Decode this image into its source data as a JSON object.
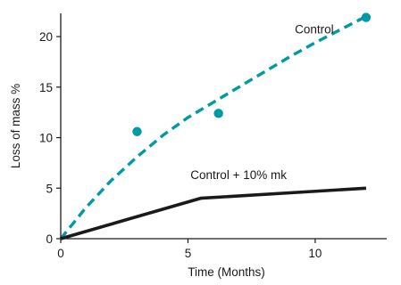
{
  "chart_data": {
    "type": "line",
    "xlabel": "Time (Months)",
    "ylabel": "Loss of mass %",
    "xlim": [
      0,
      12.6
    ],
    "ylim": [
      0,
      22.3
    ],
    "xticks": [
      0,
      5,
      10
    ],
    "yticks": [
      0,
      5,
      10,
      15,
      20
    ],
    "grid": false,
    "series": [
      {
        "name": "Control",
        "style": "dashed",
        "color": "#009aa6",
        "x": [
          0,
          1,
          2,
          3,
          4,
          5,
          6,
          7,
          8,
          9,
          10,
          11,
          12
        ],
        "y": [
          0,
          3.1,
          5.8,
          8.1,
          10.2,
          12.0,
          13.5,
          15.0,
          16.5,
          18.0,
          19.4,
          20.7,
          22.0
        ]
      },
      {
        "name": "Control + 10% mk",
        "style": "solid",
        "color": "#1a1a1a",
        "x": [
          0,
          5.5,
          12
        ],
        "y": [
          0,
          4.0,
          5.0
        ]
      }
    ],
    "points": {
      "series": "Control",
      "color": "#009aa6",
      "x": [
        3.0,
        6.2,
        12.0
      ],
      "y": [
        10.6,
        12.4,
        21.9
      ]
    }
  }
}
